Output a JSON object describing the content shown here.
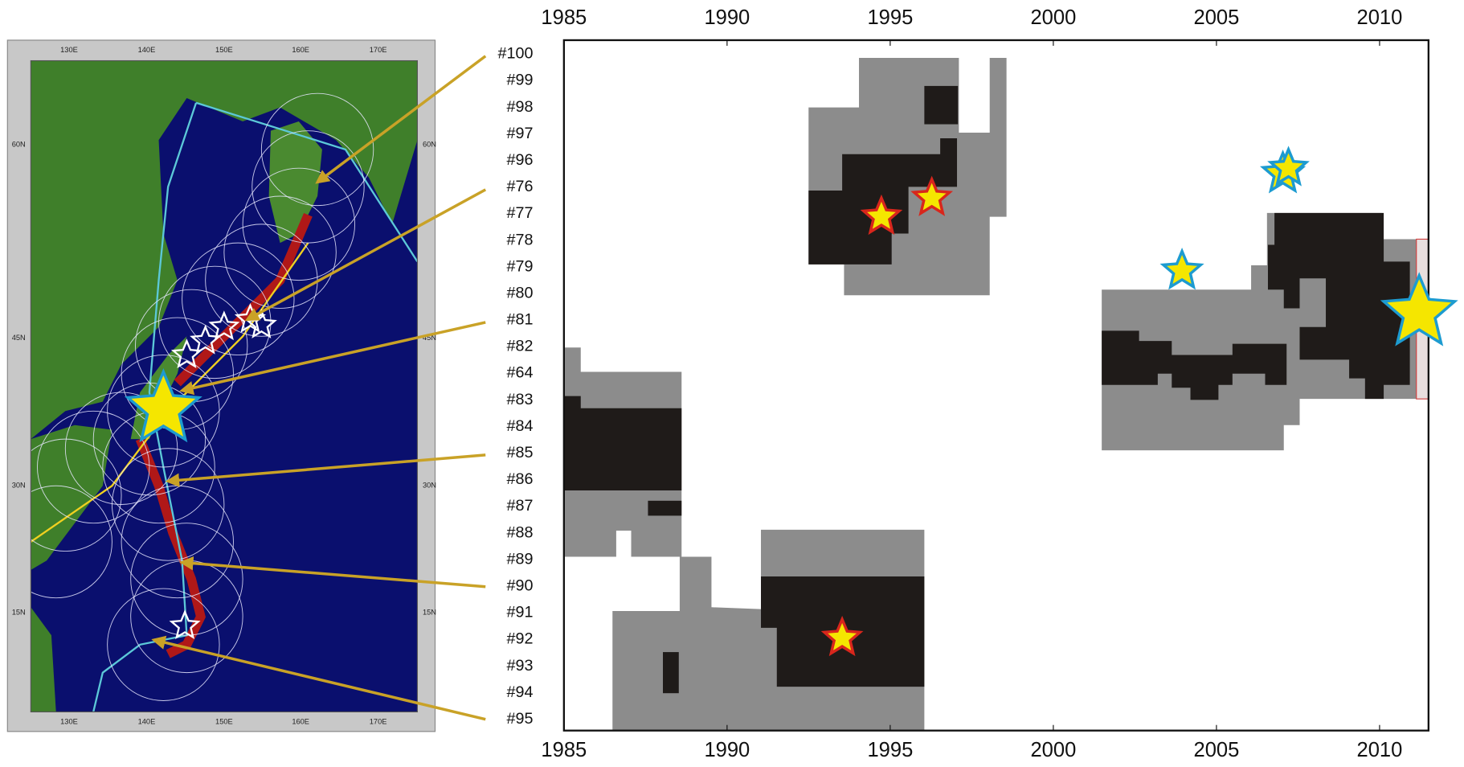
{
  "map": {
    "lon_labels": [
      "130E",
      "140E",
      "150E",
      "160E",
      "170E"
    ],
    "lat_labels": [
      "60N",
      "45N",
      "30N",
      "15N"
    ]
  },
  "timeline": {
    "xlim": [
      1985,
      2011.5
    ],
    "xticks": [
      1985,
      1990,
      1995,
      2000,
      2005,
      2010
    ],
    "rows": [
      "#100",
      "#99",
      "#98",
      "#97",
      "#96",
      "#76",
      "#77",
      "#78",
      "#79",
      "#80",
      "#81",
      "#82",
      "#64",
      "#83",
      "#84",
      "#85",
      "#86",
      "#87",
      "#88",
      "#89",
      "#90",
      "#91",
      "#92",
      "#93",
      "#94",
      "#95"
    ]
  }
}
